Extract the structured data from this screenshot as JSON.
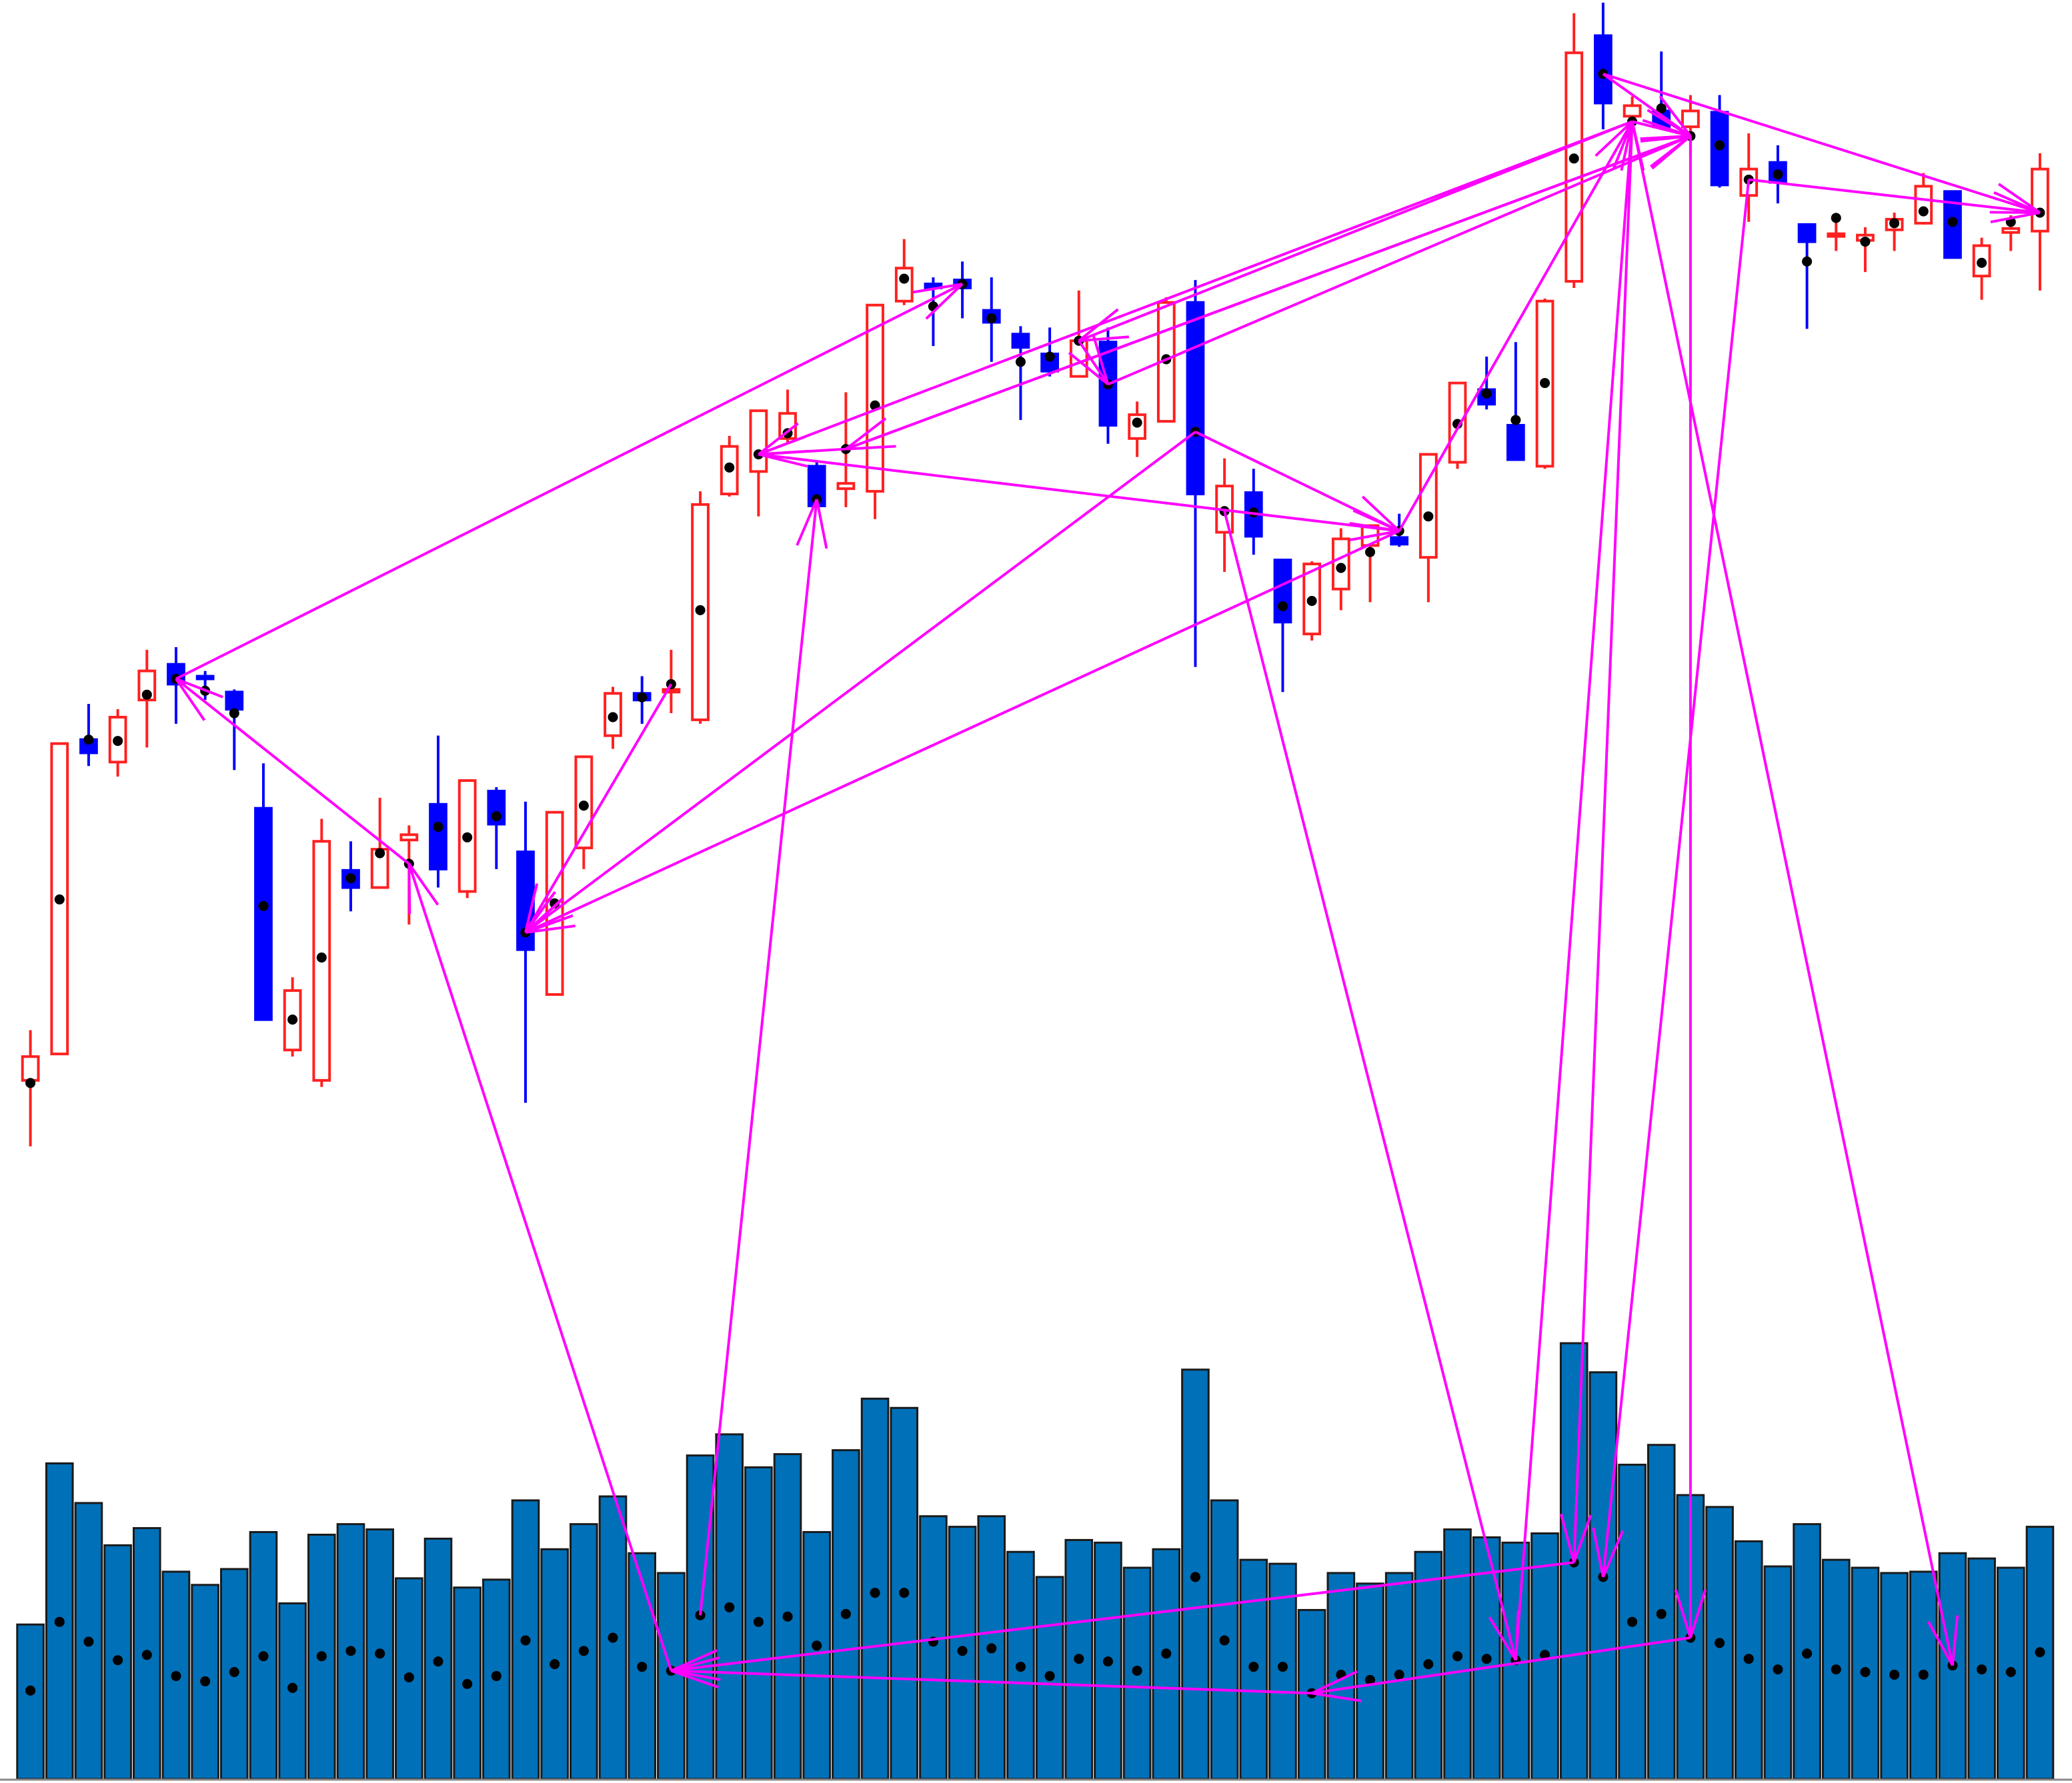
{
  "chart_data": [
    {
      "type": "candlestick",
      "up_color": "#ff2020",
      "down_color": "#0000ff",
      "dot_color": "#000000",
      "ylim": [
        0,
        900
      ],
      "open": [
        82,
        102,
        340,
        323,
        370,
        397,
        388,
        376,
        288,
        105,
        82,
        241,
        228,
        264,
        291,
        225,
        301,
        255,
        147,
        258,
        343,
        375,
        376,
        355,
        526,
        543,
        568,
        547,
        530,
        528,
        672,
        685,
        688,
        665,
        647,
        632,
        615,
        641,
        568,
        581,
        671,
        497,
        527,
        476,
        420,
        454,
        487,
        493,
        478,
        550,
        605,
        578,
        547,
        687,
        873,
        812,
        816,
        804,
        815,
        752,
        777,
        730,
        721,
        718,
        726,
        731,
        755,
        691,
        724,
        725
      ],
      "high": [
        120,
        337,
        367,
        363,
        408,
        410,
        392,
        378,
        322,
        160,
        280,
        263,
        296,
        275,
        343,
        309,
        304,
        293,
        285,
        328,
        380,
        388,
        408,
        528,
        570,
        589,
        605,
        550,
        603,
        669,
        719,
        690,
        702,
        690,
        653,
        652,
        680,
        652,
        596,
        675,
        688,
        553,
        545,
        476,
        475,
        500,
        502,
        511,
        556,
        610,
        630,
        641,
        674,
        890,
        898,
        827,
        861,
        828,
        828,
        799,
        790,
        730,
        736,
        728,
        739,
        769,
        755,
        720,
        737,
        784
      ],
      "low": [
        32,
        102,
        320,
        312,
        334,
        352,
        370,
        317,
        128,
        100,
        77,
        210,
        227,
        200,
        228,
        220,
        242,
        65,
        147,
        242,
        333,
        352,
        360,
        352,
        524,
        509,
        564,
        516,
        516,
        507,
        669,
        638,
        659,
        626,
        582,
        615,
        615,
        564,
        554,
        581,
        395,
        467,
        480,
        376,
        415,
        438,
        444,
        486,
        444,
        545,
        590,
        551,
        545,
        682,
        802,
        805,
        802,
        782,
        758,
        732,
        746,
        651,
        710,
        694,
        710,
        730,
        705,
        673,
        710,
        680
      ],
      "close": [
        100,
        337,
        330,
        357,
        392,
        382,
        386,
        363,
        128,
        150,
        263,
        228,
        257,
        268,
        242,
        309,
        276,
        181,
        285,
        327,
        375,
        370,
        378,
        518,
        562,
        589,
        587,
        517,
        534,
        669,
        697,
        682,
        682,
        656,
        637,
        619,
        642,
        578,
        586,
        671,
        526,
        532,
        494,
        429,
        473,
        492,
        502,
        488,
        556,
        610,
        594,
        552,
        672,
        860,
        822,
        820,
        804,
        816,
        760,
        772,
        762,
        717,
        723,
        722,
        734,
        759,
        705,
        714,
        727,
        772
      ],
      "dots": [
        80,
        219,
        340,
        339,
        374,
        386,
        377,
        360,
        214,
        128,
        175,
        235,
        254,
        246,
        274,
        266,
        282,
        194,
        216,
        290,
        357,
        372,
        382,
        438,
        546,
        556,
        572,
        522,
        560,
        593,
        689,
        668,
        685,
        659,
        626,
        630,
        642,
        609,
        580,
        628,
        573,
        513,
        512,
        441,
        445,
        470,
        482,
        498,
        509,
        579,
        602,
        582,
        610,
        780,
        844,
        808,
        818,
        797,
        790,
        764,
        768,
        702,
        735,
        717,
        731,
        740,
        732,
        701,
        732,
        739
      ]
    },
    {
      "type": "bar",
      "color": "#0070b8",
      "dot_color": "#000000",
      "ylim": [
        0,
        347
      ],
      "values": [
        117,
        239,
        209,
        177,
        190,
        157,
        147,
        159,
        187,
        133,
        185,
        193,
        189,
        152,
        182,
        145,
        151,
        211,
        174,
        193,
        214,
        171,
        156,
        245,
        261,
        236,
        246,
        187,
        249,
        288,
        281,
        199,
        191,
        199,
        172,
        153,
        181,
        179,
        160,
        174,
        310,
        211,
        166,
        163,
        128,
        156,
        148,
        156,
        172,
        189,
        183,
        179,
        186,
        330,
        308,
        238,
        253,
        215,
        206,
        180,
        161,
        193,
        166,
        160,
        156,
        157,
        171,
        167,
        160,
        191
      ],
      "dots": [
        67,
        119,
        104,
        90,
        94,
        78,
        74,
        81,
        93,
        69,
        93,
        97,
        95,
        77,
        89,
        72,
        78,
        105,
        87,
        97,
        107,
        85,
        82,
        124,
        130,
        119,
        123,
        101,
        125,
        141,
        141,
        104,
        97,
        99,
        85,
        78,
        91,
        89,
        82,
        95,
        153,
        105,
        85,
        85,
        65,
        79,
        75,
        79,
        87,
        93,
        91,
        90,
        94,
        164,
        153,
        119,
        125,
        107,
        103,
        91,
        83,
        95,
        83,
        81,
        79,
        79,
        86,
        83,
        81,
        96
      ]
    }
  ]
}
